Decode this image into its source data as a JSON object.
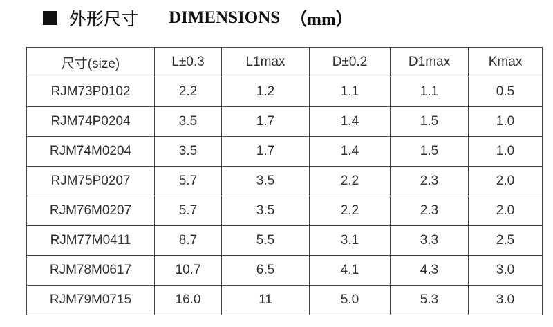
{
  "header": {
    "title": "外形尺寸",
    "subtitle": "DIMENSIONS",
    "unit": "（mm）"
  },
  "table": {
    "columns": [
      "尺寸(size)",
      "L±0.3",
      "L1max",
      "D±0.2",
      "D1max",
      "Kmax"
    ],
    "rows": [
      [
        "RJM73P0102",
        "2.2",
        "1.2",
        "1.1",
        "1.1",
        "0.5"
      ],
      [
        "RJM74P0204",
        "3.5",
        "1.7",
        "1.4",
        "1.5",
        "1.0"
      ],
      [
        "RJM74M0204",
        "3.5",
        "1.7",
        "1.4",
        "1.5",
        "1.0"
      ],
      [
        "RJM75P0207",
        "5.7",
        "3.5",
        "2.2",
        "2.3",
        "2.0"
      ],
      [
        "RJM76M0207",
        "5.7",
        "3.5",
        "2.2",
        "2.3",
        "2.0"
      ],
      [
        "RJM77M0411",
        "8.7",
        "5.5",
        "3.1",
        "3.3",
        "2.5"
      ],
      [
        "RJM78M0617",
        "10.7",
        "6.5",
        "4.1",
        "4.3",
        "3.0"
      ],
      [
        "RJM79M0715",
        "16.0",
        "11",
        "5.0",
        "5.3",
        "3.0"
      ]
    ]
  }
}
